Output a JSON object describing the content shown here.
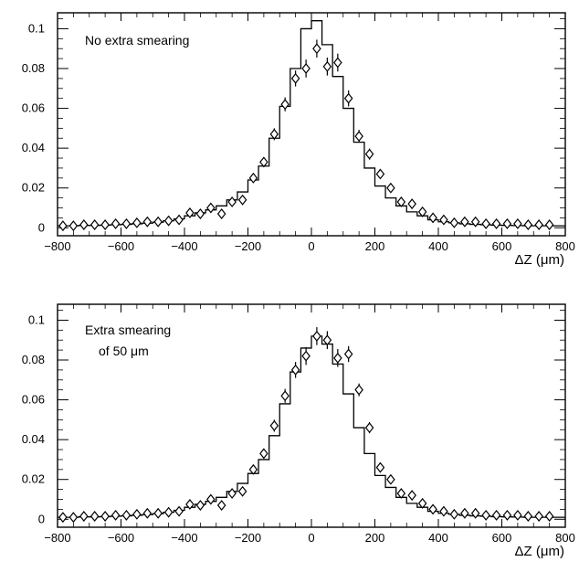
{
  "chart_data": [
    {
      "type": "line",
      "annotation_lines": [
        "No extra smearing"
      ],
      "xlabel": "ΔZ (μm)",
      "ylabel": "",
      "xlim": [
        -800,
        800
      ],
      "ylim": [
        -0.004,
        0.108
      ],
      "xticks": [
        -800,
        -600,
        -400,
        -200,
        0,
        200,
        400,
        600,
        800
      ],
      "yticks": [
        0,
        0.02,
        0.04,
        0.06,
        0.08,
        0.1
      ],
      "ytick_labels": [
        "0",
        "0.02",
        "0.04",
        "0.06",
        "0.08",
        "0.1"
      ],
      "grid": false,
      "series": [
        {
          "style": "histogram",
          "bin_edges": [
            -800,
            -766.7,
            -733.3,
            -700,
            -666.7,
            -633.3,
            -600,
            -566.7,
            -533.3,
            -500,
            -466.7,
            -433.3,
            -400,
            -366.7,
            -333.3,
            -300,
            -266.7,
            -233.3,
            -200,
            -166.7,
            -133.3,
            -100,
            -66.7,
            -33.3,
            0,
            33.3,
            66.7,
            100,
            133.3,
            166.7,
            200,
            233.3,
            266.7,
            300,
            333.3,
            366.7,
            400,
            433.3,
            466.7,
            500,
            533.3,
            566.7,
            600,
            633.3,
            666.7,
            700,
            733.3,
            766.7,
            800
          ],
          "values": [
            0.001,
            0.001,
            0.0012,
            0.0012,
            0.0013,
            0.0015,
            0.0017,
            0.002,
            0.0023,
            0.0028,
            0.0035,
            0.0045,
            0.006,
            0.0075,
            0.009,
            0.011,
            0.014,
            0.018,
            0.024,
            0.031,
            0.045,
            0.061,
            0.08,
            0.1,
            0.104,
            0.092,
            0.076,
            0.06,
            0.043,
            0.03,
            0.021,
            0.015,
            0.011,
            0.008,
            0.006,
            0.004,
            0.003,
            0.0025,
            0.002,
            0.0017,
            0.0015,
            0.0013,
            0.0012,
            0.0011,
            0.001,
            0.001,
            0.001,
            0.001
          ]
        },
        {
          "style": "points",
          "marker": "diamond",
          "x": [
            -783,
            -750,
            -717,
            -683,
            -650,
            -617,
            -583,
            -550,
            -517,
            -483,
            -450,
            -417,
            -383,
            -350,
            -317,
            -283,
            -250,
            -217,
            -183,
            -150,
            -117,
            -83,
            -50,
            -17,
            17,
            50,
            83,
            117,
            150,
            183,
            217,
            250,
            283,
            317,
            350,
            383,
            417,
            450,
            483,
            517,
            550,
            583,
            617,
            650,
            683,
            717,
            750
          ],
          "y": [
            0.001,
            0.001,
            0.0015,
            0.0015,
            0.0015,
            0.002,
            0.002,
            0.0025,
            0.003,
            0.003,
            0.0035,
            0.004,
            0.0075,
            0.007,
            0.01,
            0.007,
            0.013,
            0.014,
            0.025,
            0.033,
            0.047,
            0.062,
            0.075,
            0.08,
            0.09,
            0.081,
            0.083,
            0.065,
            0.046,
            0.037,
            0.027,
            0.02,
            0.013,
            0.012,
            0.008,
            0.005,
            0.004,
            0.0025,
            0.003,
            0.003,
            0.002,
            0.002,
            0.002,
            0.002,
            0.0015,
            0.0015,
            0.0015
          ],
          "err": [
            0.0008,
            0.0008,
            0.0008,
            0.0008,
            0.0008,
            0.0008,
            0.0008,
            0.0008,
            0.0009,
            0.0009,
            0.0009,
            0.001,
            0.0012,
            0.0012,
            0.0014,
            0.0012,
            0.0016,
            0.0016,
            0.002,
            0.0024,
            0.003,
            0.0035,
            0.004,
            0.0045,
            0.0045,
            0.0045,
            0.0045,
            0.004,
            0.0032,
            0.0028,
            0.0022,
            0.0018,
            0.0014,
            0.0014,
            0.0012,
            0.001,
            0.0009,
            0.0008,
            0.0008,
            0.0008,
            0.0008,
            0.0008,
            0.0008,
            0.0008,
            0.0008,
            0.0008,
            0.0008
          ]
        }
      ]
    },
    {
      "type": "line",
      "annotation_lines": [
        "Extra smearing",
        "of 50 μm"
      ],
      "xlabel": "ΔZ (μm)",
      "ylabel": "",
      "xlim": [
        -800,
        800
      ],
      "ylim": [
        -0.004,
        0.108
      ],
      "xticks": [
        -800,
        -600,
        -400,
        -200,
        0,
        200,
        400,
        600,
        800
      ],
      "yticks": [
        0,
        0.02,
        0.04,
        0.06,
        0.08,
        0.1
      ],
      "ytick_labels": [
        "0",
        "0.02",
        "0.04",
        "0.06",
        "0.08",
        "0.1"
      ],
      "grid": false,
      "series": [
        {
          "style": "histogram",
          "bin_edges": [
            -800,
            -766.7,
            -733.3,
            -700,
            -666.7,
            -633.3,
            -600,
            -566.7,
            -533.3,
            -500,
            -466.7,
            -433.3,
            -400,
            -366.7,
            -333.3,
            -300,
            -266.7,
            -233.3,
            -200,
            -166.7,
            -133.3,
            -100,
            -66.7,
            -33.3,
            0,
            33.3,
            66.7,
            100,
            133.3,
            166.7,
            200,
            233.3,
            266.7,
            300,
            333.3,
            366.7,
            400,
            433.3,
            466.7,
            500,
            533.3,
            566.7,
            600,
            633.3,
            666.7,
            700,
            733.3,
            766.7,
            800
          ],
          "values": [
            0.001,
            0.001,
            0.0012,
            0.0012,
            0.0013,
            0.0015,
            0.0017,
            0.002,
            0.0023,
            0.0028,
            0.0035,
            0.0045,
            0.006,
            0.0075,
            0.009,
            0.011,
            0.014,
            0.018,
            0.023,
            0.03,
            0.042,
            0.058,
            0.074,
            0.086,
            0.092,
            0.088,
            0.078,
            0.063,
            0.046,
            0.033,
            0.022,
            0.016,
            0.011,
            0.008,
            0.006,
            0.004,
            0.003,
            0.0025,
            0.002,
            0.0017,
            0.0015,
            0.0013,
            0.0012,
            0.0011,
            0.001,
            0.001,
            0.001,
            0.001
          ]
        },
        {
          "style": "points",
          "marker": "diamond",
          "x": [
            -783,
            -750,
            -717,
            -683,
            -650,
            -617,
            -583,
            -550,
            -517,
            -483,
            -450,
            -417,
            -383,
            -350,
            -317,
            -283,
            -250,
            -217,
            -183,
            -150,
            -117,
            -83,
            -50,
            -17,
            17,
            50,
            83,
            117,
            150,
            183,
            217,
            250,
            283,
            317,
            350,
            383,
            417,
            450,
            483,
            517,
            550,
            583,
            617,
            650,
            683,
            717,
            750
          ],
          "y": [
            0.001,
            0.001,
            0.0015,
            0.0015,
            0.0015,
            0.002,
            0.002,
            0.0025,
            0.003,
            0.003,
            0.0035,
            0.004,
            0.0075,
            0.007,
            0.01,
            0.007,
            0.013,
            0.014,
            0.025,
            0.033,
            0.047,
            0.062,
            0.075,
            0.082,
            0.092,
            0.09,
            0.081,
            0.083,
            0.065,
            0.046,
            0.026,
            0.02,
            0.013,
            0.012,
            0.008,
            0.005,
            0.004,
            0.0025,
            0.003,
            0.003,
            0.002,
            0.002,
            0.002,
            0.002,
            0.0015,
            0.0015,
            0.0015
          ],
          "err": [
            0.0008,
            0.0008,
            0.0008,
            0.0008,
            0.0008,
            0.0008,
            0.0008,
            0.0008,
            0.0009,
            0.0009,
            0.0009,
            0.001,
            0.0012,
            0.0012,
            0.0014,
            0.0012,
            0.0016,
            0.0016,
            0.002,
            0.0024,
            0.003,
            0.0035,
            0.004,
            0.0045,
            0.0045,
            0.0045,
            0.0045,
            0.004,
            0.0032,
            0.0028,
            0.0022,
            0.0018,
            0.0014,
            0.0014,
            0.0012,
            0.001,
            0.0009,
            0.0008,
            0.0008,
            0.0008,
            0.0008,
            0.0008,
            0.0008,
            0.0008,
            0.0008,
            0.0008,
            0.0008
          ]
        }
      ]
    }
  ]
}
